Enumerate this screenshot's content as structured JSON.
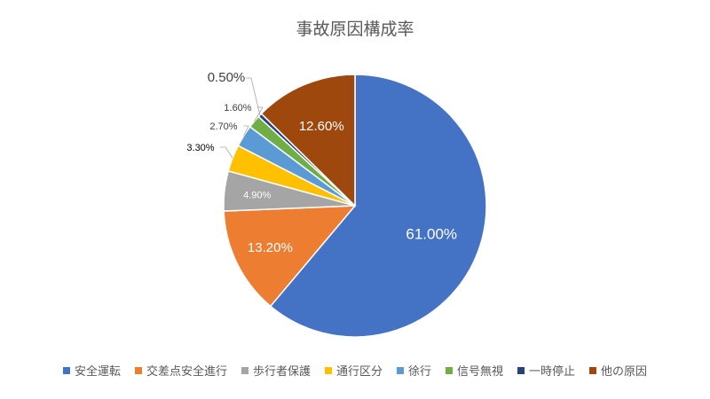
{
  "chart_data": {
    "type": "pie",
    "title": "事故原因構成率",
    "categories": [
      "安全運転",
      "交差点安全進行",
      "歩行者保護",
      "通行区分",
      "徐行",
      "信号無視",
      "一時停止",
      "他の原因"
    ],
    "values": [
      61.0,
      13.2,
      4.9,
      3.3,
      2.7,
      1.6,
      0.5,
      12.6
    ],
    "data_labels": [
      "61.00%",
      "13.20%",
      "4.90%",
      "3.30%",
      "2.70%",
      "1.60%",
      "0.50%",
      "12.60%"
    ],
    "colors": [
      "#4472C4",
      "#ED7D31",
      "#A5A5A5",
      "#FFC000",
      "#5B9BD5",
      "#70AD47",
      "#264478",
      "#9E480E"
    ],
    "legend_position": "bottom"
  }
}
